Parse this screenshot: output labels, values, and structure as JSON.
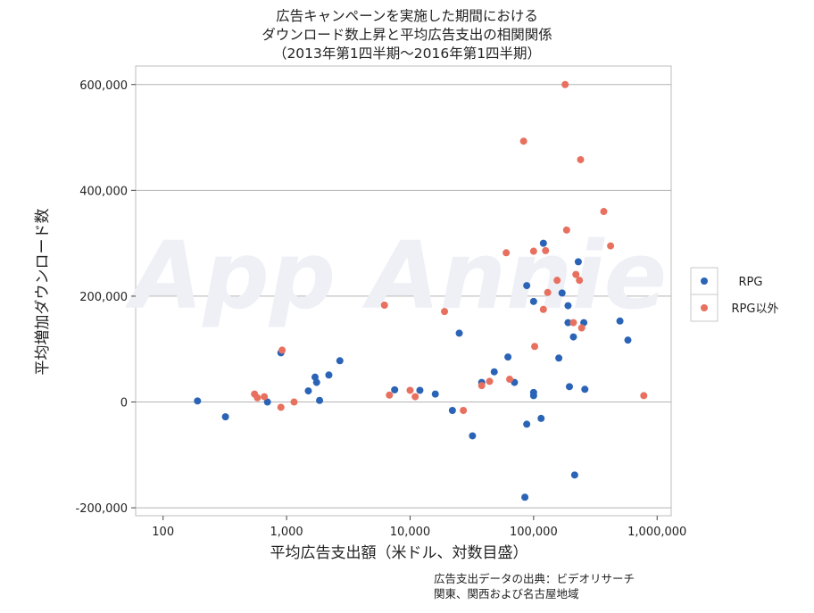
{
  "title": {
    "line1": "広告キャンペーンを実施した期間における",
    "line2": "ダウンロード数上昇と平均広告支出の相関関係",
    "line3": "（2013年第1四半期～2016年第1四半期）"
  },
  "watermark": "App Annie",
  "source": {
    "line1": "広告支出データの出典：ビデオリサーチ",
    "line2": "関東、関西および名古屋地域"
  },
  "colors": {
    "rpg": "#2b64b6",
    "non_rpg": "#e8705f"
  },
  "chart_data": {
    "type": "scatter",
    "xlabel": "平均広告支出額（米ドル、対数目盛）",
    "ylabel": "平均増加ダウンロード数",
    "x_scale": "log",
    "xlim": [
      60,
      1300000
    ],
    "ylim": [
      -215000,
      635000
    ],
    "x_ticks": [
      100,
      1000,
      10000,
      100000,
      1000000
    ],
    "x_tick_labels": [
      "100",
      "1,000",
      "10,000",
      "100,000",
      "1,000,000"
    ],
    "y_ticks": [
      -200000,
      0,
      200000,
      400000,
      600000
    ],
    "y_tick_labels": [
      "-200,000",
      "0",
      "200,000",
      "400,000",
      "600,000"
    ],
    "grid": "horizontal",
    "legend_position": "right",
    "series": [
      {
        "name": "RPG",
        "color": "#2b64b6",
        "points": [
          [
            190,
            2000
          ],
          [
            320,
            -28000
          ],
          [
            700,
            0
          ],
          [
            900,
            93000
          ],
          [
            1500,
            21000
          ],
          [
            1700,
            47000
          ],
          [
            1750,
            37000
          ],
          [
            1850,
            3000
          ],
          [
            2200,
            51000
          ],
          [
            2700,
            78000
          ],
          [
            7500,
            23000
          ],
          [
            12000,
            22000
          ],
          [
            16000,
            15000
          ],
          [
            22000,
            -16000
          ],
          [
            25000,
            130000
          ],
          [
            32000,
            -64000
          ],
          [
            38000,
            37000
          ],
          [
            48000,
            57000
          ],
          [
            62000,
            85000
          ],
          [
            70000,
            37000
          ],
          [
            85000,
            -180000
          ],
          [
            88000,
            220000
          ],
          [
            88000,
            -42000
          ],
          [
            100000,
            18000
          ],
          [
            100000,
            12000
          ],
          [
            100000,
            190000
          ],
          [
            115000,
            -31000
          ],
          [
            120000,
            300000
          ],
          [
            160000,
            83000
          ],
          [
            170000,
            206000
          ],
          [
            190000,
            150000
          ],
          [
            190000,
            182000
          ],
          [
            195000,
            29000
          ],
          [
            210000,
            123000
          ],
          [
            215000,
            -138000
          ],
          [
            230000,
            265000
          ],
          [
            255000,
            150000
          ],
          [
            260000,
            24000
          ],
          [
            500000,
            153000
          ],
          [
            580000,
            117000
          ]
        ]
      },
      {
        "name": "RPG以外",
        "color": "#e8705f",
        "points": [
          [
            550,
            15000
          ],
          [
            580,
            8000
          ],
          [
            660,
            10000
          ],
          [
            900,
            -10000
          ],
          [
            920,
            98000
          ],
          [
            1150,
            0
          ],
          [
            6200,
            183000
          ],
          [
            6800,
            13000
          ],
          [
            10000,
            22000
          ],
          [
            11000,
            10000
          ],
          [
            19000,
            171000
          ],
          [
            27000,
            -16000
          ],
          [
            38000,
            31000
          ],
          [
            44000,
            39000
          ],
          [
            60000,
            282000
          ],
          [
            64000,
            43000
          ],
          [
            83000,
            493000
          ],
          [
            100000,
            285000
          ],
          [
            102000,
            105000
          ],
          [
            120000,
            175000
          ],
          [
            125000,
            286000
          ],
          [
            130000,
            207000
          ],
          [
            155000,
            230000
          ],
          [
            180000,
            600000
          ],
          [
            185000,
            325000
          ],
          [
            210000,
            150000
          ],
          [
            220000,
            241000
          ],
          [
            235000,
            230000
          ],
          [
            240000,
            458000
          ],
          [
            245000,
            140000
          ],
          [
            370000,
            360000
          ],
          [
            420000,
            295000
          ],
          [
            780000,
            12000
          ]
        ]
      }
    ]
  }
}
